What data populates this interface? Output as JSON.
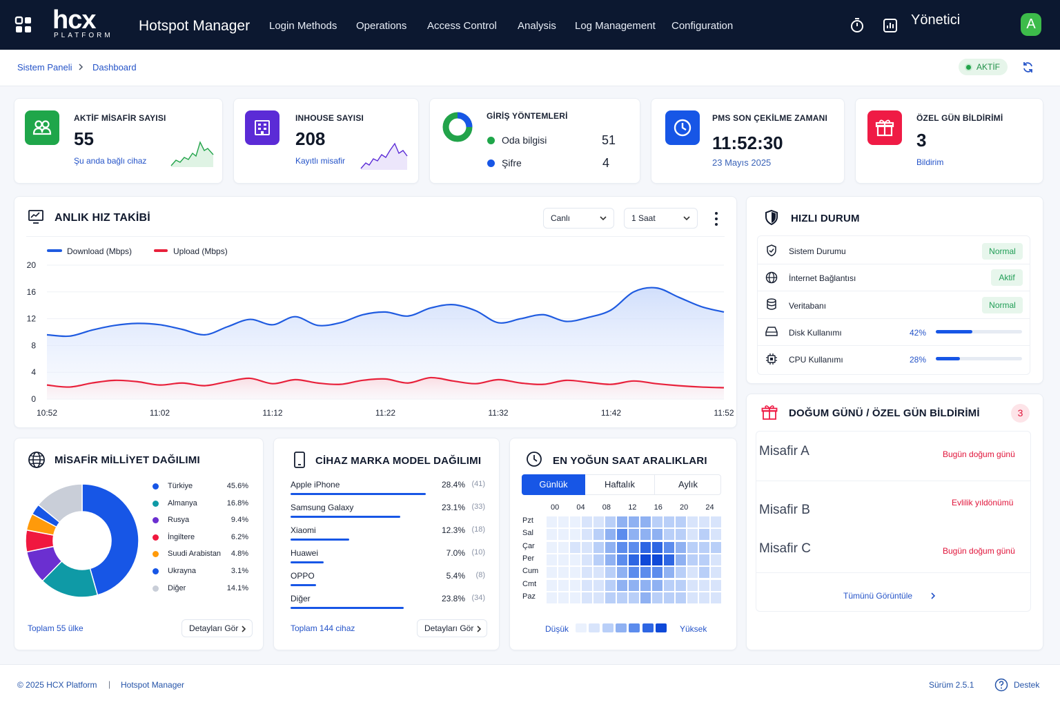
{
  "topbar": {
    "logo_main": "hcx",
    "logo_sub": "PLATFORM",
    "app_title": "Hotspot Manager",
    "nav": [
      "Login Methods",
      "Operations",
      "Access Control",
      "Analysis",
      "Log Management",
      "Configuration"
    ],
    "user_name": "Yönetici",
    "avatar_letter": "A"
  },
  "breadcrumb": {
    "root": "Sistem Paneli",
    "current": "Dashboard"
  },
  "status_chip": "AKTİF",
  "stats": {
    "guests": {
      "label": "AKTİF MİSAFİR SAYISI",
      "value": "55",
      "sub": "Şu anda bağlı cihaz"
    },
    "inhouse": {
      "label": "INHOUSE SAYISI",
      "value": "208",
      "sub": "Kayıtlı misafir"
    },
    "login": {
      "label": "GİRİŞ YÖNTEMLERİ",
      "items": [
        {
          "name": "Oda bilgisi",
          "value": "51"
        },
        {
          "name": "Şifre",
          "value": "4"
        }
      ]
    },
    "pms": {
      "label": "PMS SON ÇEKİLME ZAMANI",
      "value": "11:52:30",
      "sub": "23 Mayıs 2025"
    },
    "special": {
      "label": "ÖZEL GÜN BİLDİRİMİ",
      "value": "3",
      "sub": "Bildirim"
    }
  },
  "speed": {
    "title": "ANLIK HIZ TAKİBİ",
    "mode": "Canlı",
    "range": "1 Saat",
    "legend_download": "Download (Mbps)",
    "legend_upload": "Upload (Mbps)"
  },
  "chart_data": {
    "type": "area",
    "x": [
      "10:52",
      "10:54",
      "10:56",
      "10:58",
      "11:00",
      "11:02",
      "11:04",
      "11:06",
      "11:08",
      "11:10",
      "11:12",
      "11:14",
      "11:16",
      "11:18",
      "11:20",
      "11:22",
      "11:24",
      "11:26",
      "11:28",
      "11:30",
      "11:32",
      "11:34",
      "11:36",
      "11:38",
      "11:40",
      "11:42",
      "11:44",
      "11:46",
      "11:48",
      "11:50",
      "11:52"
    ],
    "xticks": [
      "10:52",
      "11:02",
      "11:12",
      "11:22",
      "11:32",
      "11:42",
      "11:52"
    ],
    "yticks": [
      0,
      4,
      8,
      12,
      16,
      20
    ],
    "ylim": [
      0,
      20
    ],
    "series": [
      {
        "name": "Download (Mbps)",
        "color": "#1f5be0",
        "values": [
          9.6,
          9.4,
          10.3,
          11.0,
          11.3,
          11.1,
          10.4,
          9.6,
          10.8,
          11.9,
          11.1,
          12.3,
          11.0,
          11.4,
          12.6,
          13.0,
          12.4,
          13.6,
          14.1,
          13.2,
          11.4,
          12.0,
          12.6,
          11.6,
          12.2,
          13.3,
          16.0,
          16.6,
          15.2,
          13.8,
          13.0
        ]
      },
      {
        "name": "Upload (Mbps)",
        "color": "#e8213b",
        "values": [
          2.1,
          1.8,
          2.4,
          2.8,
          2.6,
          2.1,
          2.4,
          2.0,
          2.6,
          3.1,
          2.3,
          2.9,
          2.4,
          2.2,
          2.8,
          3.0,
          2.4,
          3.2,
          2.7,
          2.3,
          2.9,
          2.4,
          2.2,
          2.8,
          2.5,
          2.2,
          2.7,
          2.3,
          2.0,
          1.8,
          1.7
        ]
      }
    ]
  },
  "quick": {
    "title": "HIZLI DURUM",
    "rows": [
      {
        "label": "Sistem Durumu",
        "badge": "Normal"
      },
      {
        "label": "İnternet Bağlantısı",
        "badge": "Aktif"
      },
      {
        "label": "Veritabanı",
        "badge": "Normal"
      },
      {
        "label": "Disk Kullanımı",
        "pct": "42%",
        "level": 0.42
      },
      {
        "label": "CPU Kullanımı",
        "pct": "28%",
        "level": 0.28
      }
    ]
  },
  "birthday": {
    "title": "DOĞUM GÜNÜ / ÖZEL GÜN BİLDİRİMİ",
    "count": "3",
    "items": [
      {
        "name": "Misafir A",
        "note": "Bugün doğum günü"
      },
      {
        "name": "Misafir B",
        "note": "Evlilik yıldönümü"
      },
      {
        "name": "Misafir C",
        "note": "Bugün doğum günü"
      }
    ],
    "view_all": "Tümünü Görüntüle"
  },
  "nationality": {
    "title": "MİSAFİR MİLLİYET DAĞILIMI",
    "items": [
      {
        "name": "Türkiye",
        "pct": "45.6%",
        "value": 45.6,
        "color": "#1756e6"
      },
      {
        "name": "Almanya",
        "pct": "16.8%",
        "value": 16.8,
        "color": "#0f9aa6"
      },
      {
        "name": "Rusya",
        "pct": "9.4%",
        "value": 9.4,
        "color": "#6b2fd0"
      },
      {
        "name": "İngiltere",
        "pct": "6.2%",
        "value": 6.2,
        "color": "#f0183f"
      },
      {
        "name": "Suudi Arabistan",
        "pct": "4.8%",
        "value": 4.8,
        "color": "#ff9a0a"
      },
      {
        "name": "Ukrayna",
        "pct": "3.1%",
        "value": 3.1,
        "color": "#1756e6"
      },
      {
        "name": "Diğer",
        "pct": "14.1%",
        "value": 14.1,
        "color": "#c9ced8"
      }
    ],
    "total": "Toplam 55 ülke",
    "details": "Detayları Gör"
  },
  "brands": {
    "title": "CİHAZ MARKA MODEL DAĞILIMI",
    "items": [
      {
        "name": "Apple iPhone",
        "pct": "28.4%",
        "cnt": "(41)",
        "value": 28.4
      },
      {
        "name": "Samsung Galaxy",
        "pct": "23.1%",
        "cnt": "(33)",
        "value": 23.1
      },
      {
        "name": "Xiaomi",
        "pct": "12.3%",
        "cnt": "(18)",
        "value": 12.3
      },
      {
        "name": "Huawei",
        "pct": "7.0%",
        "cnt": "(10)",
        "value": 7.0
      },
      {
        "name": "OPPO",
        "pct": "5.4%",
        "cnt": "(8)",
        "value": 5.4
      },
      {
        "name": "Diğer",
        "pct": "23.8%",
        "cnt": "(34)",
        "value": 23.8
      }
    ],
    "total": "Toplam 144 cihaz",
    "details": "Detayları Gör"
  },
  "peak": {
    "title": "EN YOĞUN SAAT ARALIKLARI",
    "tabs": [
      "Günlük",
      "Haftalık",
      "Aylık"
    ],
    "hours": [
      "00",
      "04",
      "08",
      "12",
      "16",
      "20",
      "24"
    ],
    "days": [
      "Pzt",
      "Sal",
      "Çar",
      "Per",
      "Cum",
      "Cmt",
      "Paz"
    ],
    "levels": [
      [
        0,
        0,
        0,
        1,
        1,
        2,
        3,
        3,
        3,
        2,
        2,
        2,
        1,
        1,
        1
      ],
      [
        0,
        0,
        0,
        1,
        2,
        3,
        4,
        3,
        3,
        3,
        2,
        2,
        1,
        2,
        1
      ],
      [
        0,
        0,
        1,
        1,
        2,
        3,
        4,
        4,
        5,
        5,
        4,
        3,
        2,
        2,
        2
      ],
      [
        0,
        0,
        0,
        1,
        2,
        3,
        4,
        5,
        6,
        6,
        5,
        3,
        2,
        2,
        1
      ],
      [
        0,
        0,
        0,
        1,
        1,
        2,
        3,
        4,
        4,
        4,
        3,
        2,
        1,
        2,
        1
      ],
      [
        0,
        0,
        0,
        1,
        1,
        2,
        3,
        3,
        3,
        3,
        2,
        2,
        1,
        1,
        1
      ],
      [
        0,
        0,
        0,
        1,
        1,
        2,
        2,
        2,
        3,
        2,
        2,
        2,
        1,
        1,
        1
      ]
    ],
    "low": "Düşük",
    "high": "Yüksek"
  },
  "footer": {
    "copyright": "© 2025 HCX Platform",
    "product": "Hotspot Manager",
    "version": "Sürüm 2.5.1",
    "support": "Destek"
  }
}
